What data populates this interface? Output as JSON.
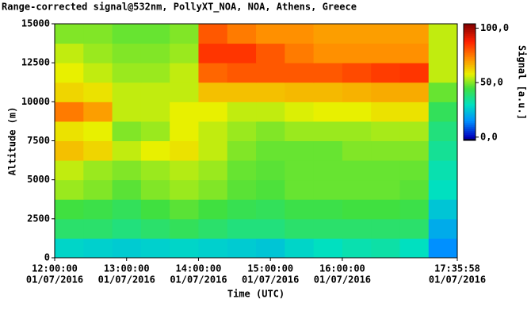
{
  "chart_data": {
    "type": "heatmap",
    "title": "Range-corrected signal@532nm, PollyXT_NOA, NOA, Athens, Greece",
    "x_label": "Time (UTC)",
    "y_label": "Altitude (m)",
    "colorbar_label": "Signal [a.u.]",
    "xlim": [
      12,
      17.5994
    ],
    "xticks": [
      {
        "value": 12,
        "label": "12:00:00",
        "sublabel": "01/07/2016"
      },
      {
        "value": 13,
        "label": "13:00:00",
        "sublabel": "01/07/2016"
      },
      {
        "value": 14,
        "label": "14:00:00",
        "sublabel": "01/07/2016"
      },
      {
        "value": 15,
        "label": "15:00:00",
        "sublabel": "01/07/2016"
      },
      {
        "value": 16,
        "label": "16:00:00",
        "sublabel": "01/07/2016"
      },
      {
        "value": 17.5994,
        "label": "17:35:58",
        "sublabel": "01/07/2016"
      }
    ],
    "ylim": [
      0,
      15000
    ],
    "yticks": [
      0,
      2500,
      5000,
      7500,
      10000,
      12500,
      15000
    ],
    "clim": [
      -3,
      104
    ],
    "cticks": [
      {
        "value": 100,
        "label": "100,0"
      },
      {
        "value": 50,
        "label": "50,0"
      },
      {
        "value": 0,
        "label": "0,0"
      }
    ],
    "colorscale": [
      [
        -3,
        "#000000"
      ],
      [
        0,
        "#0000c0"
      ],
      [
        15,
        "#0090ff"
      ],
      [
        30,
        "#00e0c0"
      ],
      [
        45,
        "#40e040"
      ],
      [
        58,
        "#e8f000"
      ],
      [
        72,
        "#ff9000"
      ],
      [
        88,
        "#ff2000"
      ],
      [
        104,
        "#800000"
      ]
    ],
    "x_edges": [
      12,
      12.4,
      12.8,
      13.2,
      13.6,
      14,
      14.4,
      14.8,
      15.2,
      15.6,
      16,
      16.4,
      16.8,
      17.2,
      17.5994
    ],
    "y_edges": [
      0,
      1250,
      2500,
      3750,
      5000,
      6250,
      7500,
      8750,
      10000,
      11250,
      12500,
      13750,
      15000
    ],
    "values": [
      [
        28,
        27,
        26,
        27,
        28,
        27,
        26,
        25,
        28,
        30,
        32,
        33,
        30,
        15
      ],
      [
        40,
        40,
        38,
        40,
        42,
        40,
        38,
        38,
        40,
        40,
        40,
        40,
        40,
        20
      ],
      [
        45,
        44,
        42,
        45,
        47,
        45,
        43,
        42,
        44,
        44,
        45,
        45,
        44,
        25
      ],
      [
        52,
        50,
        47,
        50,
        52,
        50,
        47,
        46,
        48,
        48,
        48,
        48,
        47,
        30
      ],
      [
        55,
        52,
        50,
        52,
        54,
        52,
        48,
        47,
        48,
        48,
        48,
        48,
        48,
        32
      ],
      [
        65,
        62,
        55,
        58,
        60,
        55,
        50,
        48,
        48,
        48,
        50,
        50,
        50,
        35
      ],
      [
        60,
        58,
        50,
        52,
        58,
        55,
        52,
        50,
        52,
        52,
        52,
        53,
        53,
        38
      ],
      [
        75,
        70,
        55,
        55,
        58,
        58,
        55,
        55,
        57,
        58,
        58,
        60,
        60,
        42
      ],
      [
        62,
        60,
        55,
        55,
        55,
        65,
        65,
        65,
        66,
        66,
        67,
        68,
        68,
        48
      ],
      [
        58,
        55,
        52,
        52,
        55,
        78,
        80,
        80,
        80,
        80,
        82,
        84,
        85,
        55
      ],
      [
        55,
        52,
        50,
        50,
        52,
        85,
        85,
        80,
        75,
        72,
        72,
        72,
        72,
        55
      ],
      [
        50,
        50,
        48,
        48,
        50,
        80,
        75,
        72,
        72,
        70,
        70,
        70,
        70,
        55
      ]
    ]
  }
}
